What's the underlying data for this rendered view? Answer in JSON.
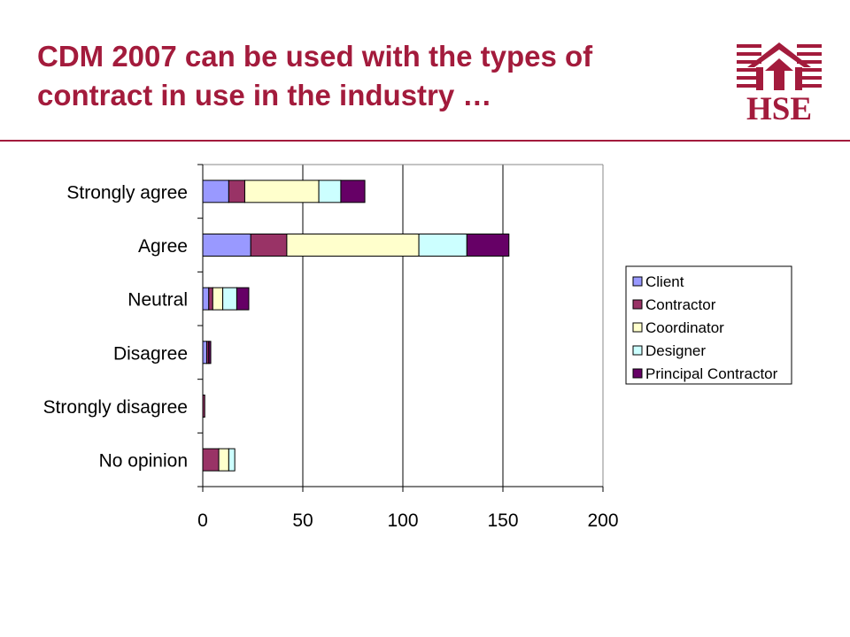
{
  "slide": {
    "title_line1": "CDM 2007 can be used with the types of",
    "title_line2": "contract in use in the industry …",
    "logo_text": "HSE",
    "brand_color": "#a31b3c"
  },
  "chart_data": {
    "type": "bar",
    "orientation": "horizontal",
    "stacked": true,
    "categories": [
      "Strongly agree",
      "Agree",
      "Neutral",
      "Disagree",
      "Strongly disagree",
      "No opinion"
    ],
    "series": [
      {
        "name": "Client",
        "color": "#9999ff",
        "values": [
          13,
          24,
          3,
          2,
          0,
          0
        ]
      },
      {
        "name": "Contractor",
        "color": "#993366",
        "values": [
          8,
          18,
          2,
          1,
          1,
          8
        ]
      },
      {
        "name": "Coordinator",
        "color": "#ffffcc",
        "values": [
          37,
          66,
          5,
          0,
          0,
          5
        ]
      },
      {
        "name": "Designer",
        "color": "#ccffff",
        "values": [
          11,
          24,
          7,
          0,
          0,
          3
        ]
      },
      {
        "name": "Principal Contractor",
        "color": "#660066",
        "values": [
          12,
          21,
          6,
          1,
          0,
          0
        ]
      }
    ],
    "xlim": [
      0,
      200
    ],
    "xticks": [
      0,
      50,
      100,
      150,
      200
    ],
    "grid": "vertical",
    "legend_position": "right"
  }
}
